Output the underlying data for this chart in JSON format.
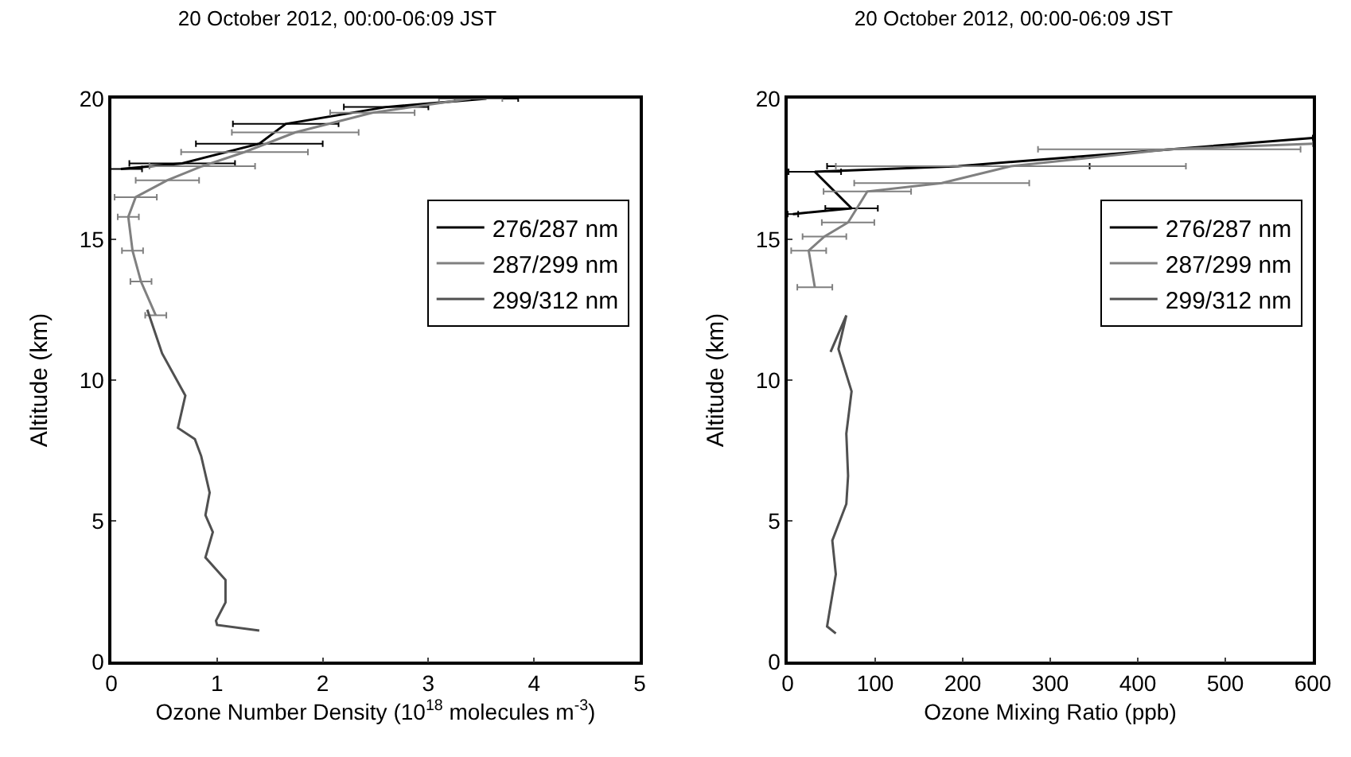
{
  "chart_data": [
    {
      "type": "line",
      "title": "20 October 2012, 00:00-06:09 JST",
      "xlabel": "Ozone Number Density (10$^{18}$ molecules m$^{-3}$)",
      "ylabel": "Altitude (km)",
      "xlim": [
        0,
        5
      ],
      "xticks": [
        0,
        1,
        2,
        3,
        4,
        5
      ],
      "ylim": [
        0,
        20
      ],
      "yticks": [
        0,
        5,
        10,
        15,
        20
      ],
      "legend": "top right",
      "series": [
        {
          "name": "276/287 nm",
          "color": "#000000",
          "x": [
            0.09,
            0.67,
            1.4,
            1.65,
            2.6,
            3.55
          ],
          "values": [
            17.5,
            17.7,
            18.4,
            19.1,
            19.7,
            20
          ],
          "xerrors": [
            0.2,
            0.5,
            0.6,
            0.5,
            0.4,
            0.3
          ]
        },
        {
          "name": "287/299 nm",
          "color": "#808080",
          "x": [
            0.42,
            0.28,
            0.2,
            0.16,
            0.23,
            0.53,
            0.86,
            1.26,
            1.74,
            2.47,
            3.4
          ],
          "values": [
            12.3,
            13.5,
            14.6,
            15.8,
            16.5,
            17.1,
            17.6,
            18.1,
            18.8,
            19.5,
            20
          ],
          "xerrors": [
            0.1,
            0.1,
            0.1,
            0.1,
            0.2,
            0.3,
            0.5,
            0.6,
            0.6,
            0.4,
            0.3
          ]
        },
        {
          "name": "299/312 nm",
          "color": "#505050",
          "x": [
            0.34,
            0.48,
            0.7,
            0.63,
            0.79,
            0.85,
            0.93,
            0.89,
            0.96,
            0.89,
            1.08,
            1.08,
            0.99,
            1.0,
            1.4
          ],
          "values": [
            12.5,
            10.95,
            9.45,
            8.3,
            7.9,
            7.3,
            6.0,
            5.2,
            4.6,
            3.7,
            2.9,
            2.1,
            1.45,
            1.3,
            1.1
          ]
        }
      ]
    },
    {
      "type": "line",
      "title": "20 October 2012, 00:00-06:09 JST",
      "xlabel": "Ozone Mixing Ratio (ppb)",
      "ylabel": "Altitude (km)",
      "xlim": [
        0,
        600
      ],
      "xticks": [
        0,
        100,
        200,
        300,
        400,
        500,
        600
      ],
      "ylim": [
        0,
        20
      ],
      "yticks": [
        0,
        5,
        10,
        15,
        20
      ],
      "legend": "top right",
      "series": [
        {
          "name": "276/287 nm",
          "color": "#000000",
          "x": [
            6,
            73,
            31,
            195,
            600
          ],
          "values": [
            15.9,
            16.1,
            17.4,
            17.6,
            18.6
          ],
          "xerrors": [
            6,
            30,
            30,
            150,
            null
          ]
        },
        {
          "name": "287/299 nm",
          "color": "#808080",
          "x": [
            31,
            24,
            42,
            69,
            91,
            176,
            255,
            436,
            600
          ],
          "values": [
            13.3,
            14.6,
            15.1,
            15.6,
            16.7,
            17.0,
            17.6,
            18.2,
            18.4
          ],
          "xerrors": [
            20,
            20,
            25,
            30,
            50,
            100,
            200,
            150,
            null
          ]
        },
        {
          "name": "299/312 nm",
          "color": "#505050",
          "x": [
            49,
            67,
            58,
            73,
            67,
            69,
            67,
            51,
            55,
            49,
            45,
            55
          ],
          "values": [
            11.0,
            12.3,
            11.1,
            9.6,
            8.1,
            6.6,
            5.6,
            4.3,
            3.1,
            2.0,
            1.25,
            1.0
          ]
        }
      ]
    }
  ]
}
